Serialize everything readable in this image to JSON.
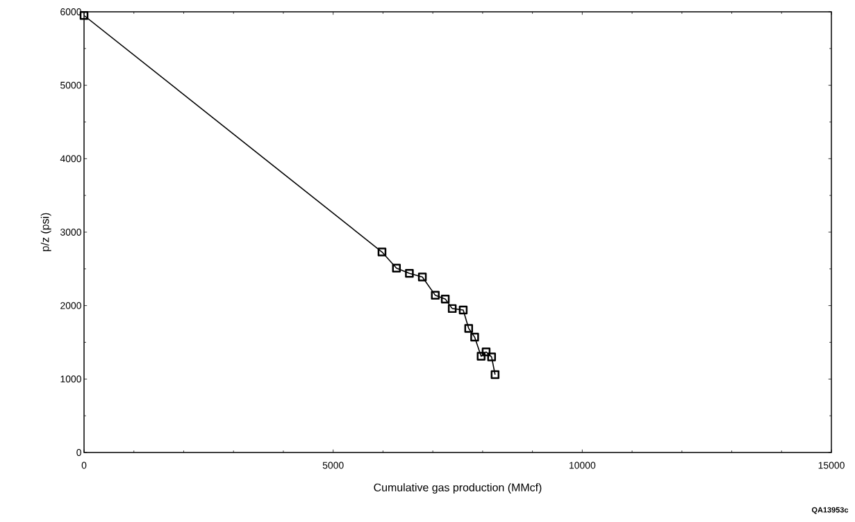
{
  "chart_data": {
    "type": "line",
    "xlabel": "Cumulative gas production (MMcf)",
    "ylabel": "p/z (psi)",
    "annotations": [
      "QA13953c"
    ],
    "x": [
      0,
      5980,
      6270,
      6530,
      6790,
      7050,
      7250,
      7390,
      7610,
      7720,
      7840,
      7970,
      8070,
      8180,
      8250
    ],
    "values": [
      5950,
      2730,
      2510,
      2440,
      2390,
      2140,
      2090,
      1960,
      1940,
      1690,
      1570,
      1310,
      1370,
      1300,
      1060
    ],
    "color": "#000000",
    "marker": "square",
    "line_style": "solid",
    "grid": false,
    "xlim": [
      0,
      15000
    ],
    "ylim": [
      0,
      6000
    ],
    "xticks": [
      0,
      5000,
      10000,
      15000
    ],
    "yticks": [
      0,
      1000,
      2000,
      3000,
      4000,
      5000,
      6000
    ]
  }
}
